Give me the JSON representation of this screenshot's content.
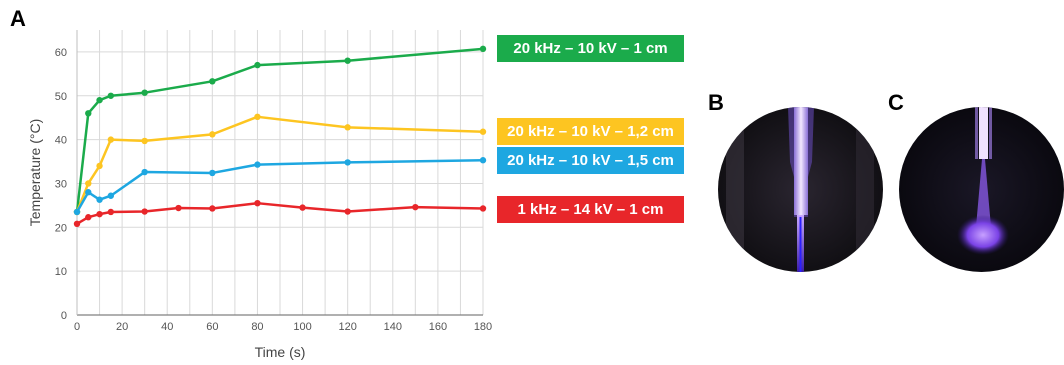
{
  "panels": {
    "a": "A",
    "b": "B",
    "c": "C"
  },
  "chart_data": {
    "type": "line",
    "xlabel": "Time (s)",
    "ylabel": "Temperature (°C)",
    "xlim": [
      0,
      180
    ],
    "ylim": [
      0,
      65
    ],
    "xticks": [
      "0",
      "20",
      "40",
      "60",
      "80",
      "100",
      "120",
      "140",
      "160",
      "180"
    ],
    "yticks": [
      "0",
      "10",
      "20",
      "30",
      "40",
      "50",
      "60"
    ],
    "grid": true,
    "legend_placement": "right",
    "series": [
      {
        "name": "20 kHz – 10 kV – 1 cm",
        "color": "#1bab4b",
        "x": [
          0,
          5,
          10,
          15,
          30,
          60,
          80,
          120,
          180
        ],
        "y": [
          23.5,
          46,
          49,
          50,
          50.7,
          53.3,
          57,
          58,
          60.7
        ]
      },
      {
        "name": "20 kHz – 10 kV – 1,2 cm",
        "color": "#fdc521",
        "x": [
          0,
          5,
          10,
          15,
          30,
          60,
          80,
          120,
          180
        ],
        "y": [
          23.5,
          30,
          34,
          40,
          39.7,
          41.2,
          45.2,
          42.8,
          41.8
        ]
      },
      {
        "name": "20 kHz – 10 kV – 1,5 cm",
        "color": "#1ea7e1",
        "x": [
          0,
          5,
          10,
          15,
          30,
          60,
          80,
          120,
          180
        ],
        "y": [
          23.5,
          28,
          26.3,
          27.2,
          32.6,
          32.4,
          34.3,
          34.8,
          35.3
        ]
      },
      {
        "name": "1 kHz – 14 kV – 1 cm",
        "color": "#e8262a",
        "x": [
          0,
          5,
          10,
          15,
          30,
          45,
          60,
          80,
          100,
          120,
          150,
          180
        ],
        "y": [
          20.8,
          22.3,
          23,
          23.5,
          23.6,
          24.4,
          24.3,
          25.5,
          24.5,
          23.6,
          24.6,
          24.3
        ]
      }
    ]
  }
}
